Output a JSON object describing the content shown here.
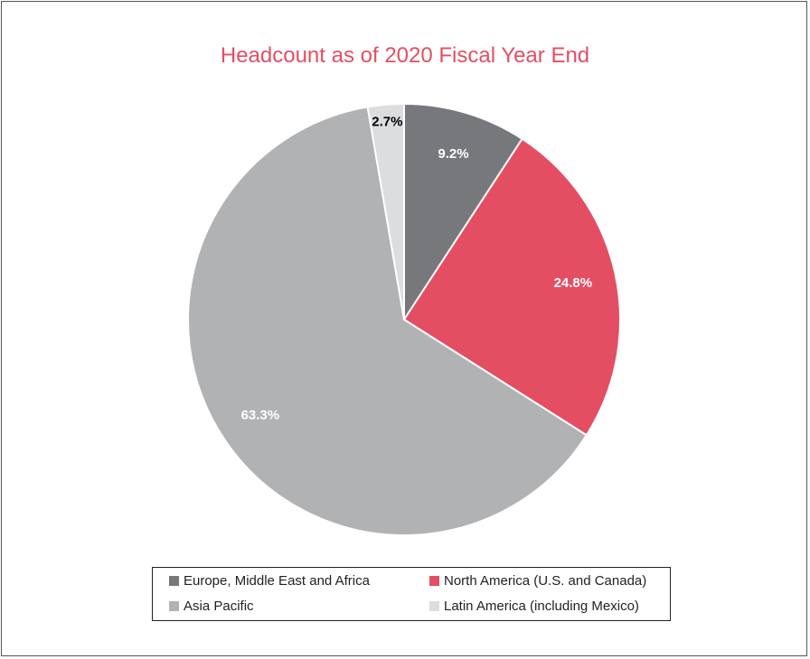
{
  "chart_data": {
    "type": "pie",
    "title": "Headcount as of 2020 Fiscal Year End",
    "start_angle_deg": 0,
    "direction": "clockwise",
    "legend_position": "bottom",
    "slices": [
      {
        "label": "Europe, Middle East and Africa",
        "value": 9.2,
        "value_label": "9.2%",
        "color": "#77787b",
        "label_color": "#ffffff"
      },
      {
        "label": "North America (U.S. and Canada)",
        "value": 24.8,
        "value_label": "24.8%",
        "color": "#e44e63",
        "label_color": "#ffffff"
      },
      {
        "label": "Asia Pacific",
        "value": 63.3,
        "value_label": "63.3%",
        "color": "#b1b2b4",
        "label_color": "#ffffff"
      },
      {
        "label": "Latin America (including Mexico)",
        "value": 2.7,
        "value_label": "2.7%",
        "color": "#dcdddf",
        "label_color": "#000000"
      }
    ]
  }
}
